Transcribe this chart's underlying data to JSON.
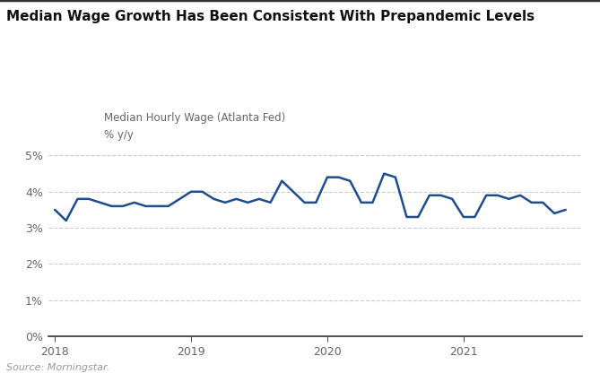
{
  "title": "Median Wage Growth Has Been Consistent With Prepandemic Levels",
  "legend_label": "Median Hourly Wage (Atlanta Fed)",
  "ylabel": "% y/y",
  "source": "Source: Morningstar.",
  "line_color": "#1f4e8c",
  "background_color": "#ffffff",
  "grid_color": "#cccccc",
  "ylim": [
    0.0,
    0.055
  ],
  "yticks": [
    0.0,
    0.01,
    0.02,
    0.03,
    0.04,
    0.05
  ],
  "ytick_labels": [
    "0%",
    "1%",
    "2%",
    "3%",
    "4%",
    "5%"
  ],
  "x_values": [
    2018.0,
    2018.083,
    2018.167,
    2018.25,
    2018.333,
    2018.417,
    2018.5,
    2018.583,
    2018.667,
    2018.75,
    2018.833,
    2018.917,
    2019.0,
    2019.083,
    2019.167,
    2019.25,
    2019.333,
    2019.417,
    2019.5,
    2019.583,
    2019.667,
    2019.75,
    2019.833,
    2019.917,
    2020.0,
    2020.083,
    2020.167,
    2020.25,
    2020.333,
    2020.417,
    2020.5,
    2020.583,
    2020.667,
    2020.75,
    2020.833,
    2020.917,
    2021.0,
    2021.083,
    2021.167,
    2021.25,
    2021.333,
    2021.417,
    2021.5,
    2021.583,
    2021.667,
    2021.75
  ],
  "y_values": [
    0.035,
    0.032,
    0.038,
    0.038,
    0.037,
    0.036,
    0.036,
    0.037,
    0.036,
    0.036,
    0.036,
    0.038,
    0.04,
    0.04,
    0.038,
    0.037,
    0.038,
    0.037,
    0.038,
    0.037,
    0.043,
    0.04,
    0.037,
    0.037,
    0.044,
    0.044,
    0.043,
    0.037,
    0.037,
    0.045,
    0.044,
    0.033,
    0.033,
    0.039,
    0.039,
    0.038,
    0.033,
    0.033,
    0.039,
    0.039,
    0.038,
    0.039,
    0.037,
    0.037,
    0.034,
    0.035
  ],
  "xtick_positions": [
    2018.0,
    2019.0,
    2020.0,
    2021.0
  ],
  "xtick_labels": [
    "2018",
    "2019",
    "2020",
    "2021"
  ],
  "title_fontsize": 11,
  "tick_fontsize": 9,
  "label_fontsize": 8.5,
  "source_fontsize": 8,
  "line_width": 1.8
}
